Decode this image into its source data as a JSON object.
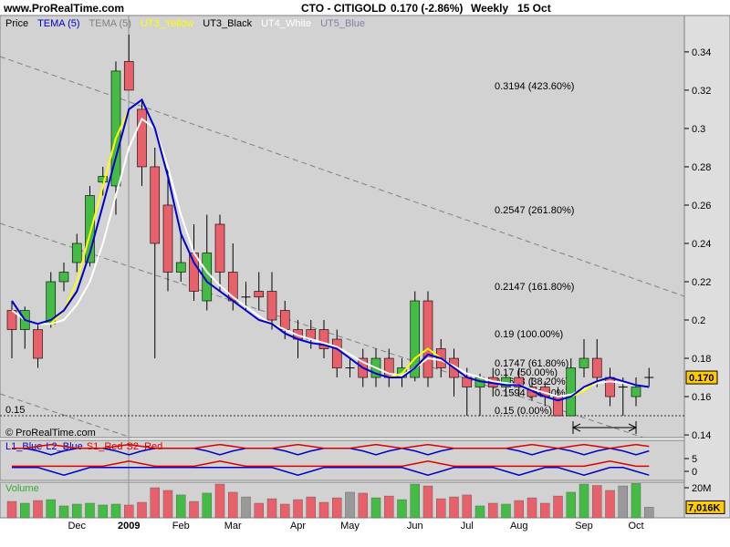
{
  "header": {
    "site": "www.ProRealTime.com",
    "symbol": "CTO - CITIGOLD",
    "quote": "0.170 (-2.86%)",
    "period": "Weekly",
    "date": "15 Oct"
  },
  "chart_data": [
    {
      "type": "candlestick",
      "title": "Price",
      "legend": [
        {
          "label": "TEMA (5)",
          "color": "#0000cc"
        },
        {
          "label": "TEMA (5)",
          "color": "#808080"
        },
        {
          "label": "UT3_Yellow",
          "color": "#ffff00"
        },
        {
          "label": "UT3_Black",
          "color": "#000000"
        },
        {
          "label": "UT4_White",
          "color": "#ffffff"
        },
        {
          "label": "UT5_Blue",
          "color": "#8080a0"
        }
      ],
      "categories": [
        null,
        null,
        null,
        null,
        null,
        "Dec",
        null,
        null,
        null,
        "2009",
        null,
        null,
        null,
        "Feb",
        null,
        null,
        null,
        "Mar",
        null,
        null,
        null,
        null,
        "Apr",
        null,
        null,
        null,
        "May",
        null,
        null,
        null,
        null,
        "Jun",
        null,
        null,
        null,
        "Jul",
        null,
        null,
        null,
        "Aug",
        null,
        null,
        null,
        null,
        "Sep",
        null,
        null,
        null,
        "Oct",
        null
      ],
      "open": [
        0.205,
        0.195,
        0.195,
        0.198,
        0.22,
        0.23,
        0.23,
        0.272,
        0.27,
        0.335,
        0.31,
        0.28,
        0.26,
        0.225,
        0.235,
        0.21,
        0.25,
        0.225,
        0.212,
        0.215,
        0.215,
        0.205,
        0.195,
        0.195,
        0.195,
        0.19,
        0.175,
        0.18,
        0.17,
        0.18,
        0.17,
        0.17,
        0.21,
        0.185,
        0.18,
        0.17,
        0.165,
        0.17,
        0.165,
        0.17,
        0.165,
        0.165,
        0.16,
        0.15,
        0.175,
        0.18,
        0.17,
        0.165,
        0.16,
        0.17
      ],
      "high": [
        0.21,
        0.207,
        0.198,
        0.225,
        0.23,
        0.245,
        0.27,
        0.28,
        0.335,
        0.349,
        0.315,
        0.29,
        0.28,
        0.245,
        0.25,
        0.255,
        0.255,
        0.24,
        0.22,
        0.225,
        0.225,
        0.21,
        0.2,
        0.2,
        0.2,
        0.195,
        0.18,
        0.185,
        0.185,
        0.185,
        0.18,
        0.215,
        0.215,
        0.19,
        0.185,
        0.175,
        0.172,
        0.175,
        0.172,
        0.175,
        0.17,
        0.168,
        0.165,
        0.18,
        0.19,
        0.19,
        0.175,
        0.17,
        0.17,
        0.175
      ],
      "low": [
        0.18,
        0.185,
        0.175,
        0.196,
        0.215,
        0.225,
        0.228,
        0.265,
        0.255,
        0.32,
        0.27,
        0.18,
        0.215,
        0.22,
        0.21,
        0.205,
        0.215,
        0.205,
        0.205,
        0.205,
        0.195,
        0.19,
        0.18,
        0.185,
        0.18,
        0.17,
        0.17,
        0.165,
        0.165,
        0.165,
        0.165,
        0.168,
        0.165,
        0.17,
        0.16,
        0.15,
        0.15,
        0.16,
        0.16,
        0.16,
        0.158,
        0.155,
        0.15,
        0.15,
        0.17,
        0.165,
        0.155,
        0.15,
        0.155,
        0.165
      ],
      "close": [
        0.195,
        0.205,
        0.18,
        0.22,
        0.225,
        0.24,
        0.265,
        0.275,
        0.33,
        0.32,
        0.28,
        0.24,
        0.225,
        0.23,
        0.215,
        0.235,
        0.225,
        0.21,
        0.212,
        0.212,
        0.2,
        0.195,
        0.19,
        0.19,
        0.185,
        0.175,
        0.175,
        0.17,
        0.18,
        0.17,
        0.175,
        0.21,
        0.17,
        0.175,
        0.17,
        0.165,
        0.17,
        0.165,
        0.17,
        0.165,
        0.16,
        0.16,
        0.15,
        0.175,
        0.18,
        0.17,
        0.16,
        0.165,
        0.165,
        0.17
      ],
      "up_color": "#44bb44",
      "down_color": "#e8606a",
      "flat_color": "#000000",
      "indicators": [
        {
          "color": "#ffffff",
          "values": [
            0.205,
            0.2,
            0.198,
            0.198,
            0.2,
            0.208,
            0.22,
            0.24,
            0.265,
            0.29,
            0.305,
            0.3,
            0.28,
            0.255,
            0.235,
            0.225,
            0.218,
            0.212,
            0.207,
            0.202,
            0.198,
            0.195,
            0.192,
            0.19,
            0.188,
            0.186,
            0.182,
            0.178,
            0.175,
            0.172,
            0.171,
            0.175,
            0.18,
            0.179,
            0.176,
            0.172,
            0.17,
            0.168,
            0.167,
            0.166,
            0.164,
            0.162,
            0.16,
            0.161,
            0.164,
            0.167,
            0.168,
            0.167,
            0.166,
            0.165
          ]
        },
        {
          "color": "#ffff00",
          "values": [
            null,
            null,
            null,
            0.198,
            0.205,
            0.22,
            0.245,
            0.27,
            0.295,
            0.31,
            null,
            null,
            null,
            null,
            null,
            null,
            null,
            null,
            null,
            null,
            null,
            null,
            null,
            null,
            null,
            null,
            null,
            null,
            null,
            0.17,
            0.172,
            0.18,
            0.185,
            0.18,
            null,
            null,
            null,
            null,
            null,
            null,
            null,
            null,
            null,
            0.16,
            0.163,
            0.168,
            0.17,
            null,
            null,
            null
          ]
        },
        {
          "color": "#0000cc",
          "values": [
            0.21,
            0.2,
            0.198,
            0.2,
            0.205,
            0.215,
            0.235,
            0.26,
            0.285,
            0.31,
            0.315,
            0.3,
            0.275,
            0.245,
            0.23,
            0.22,
            0.215,
            0.21,
            0.205,
            0.2,
            0.198,
            0.193,
            0.19,
            0.188,
            0.187,
            0.185,
            0.18,
            0.175,
            0.172,
            0.17,
            0.17,
            0.175,
            0.182,
            0.18,
            0.175,
            0.17,
            0.168,
            0.167,
            0.166,
            0.166,
            0.163,
            0.16,
            0.158,
            0.16,
            0.165,
            0.168,
            0.17,
            0.168,
            0.166,
            0.165
          ]
        }
      ],
      "levels": [
        {
          "value": 0.3194,
          "label": "0.3194 (423.60%)"
        },
        {
          "value": 0.2547,
          "label": "0.2547 (261.80%)"
        },
        {
          "value": 0.2147,
          "label": "0.2147 (161.80%)"
        },
        {
          "value": 0.19,
          "label": "0.19 (100.00%)"
        },
        {
          "value": 0.1747,
          "label": "0.1747 (61.80%)"
        },
        {
          "value": 0.17,
          "label": "0.17 (50.00%)"
        },
        {
          "value": 0.1653,
          "label": "0.1653 (38.20%)"
        },
        {
          "value": 0.1594,
          "label": "0.1594 (23.60%)"
        },
        {
          "value": 0.15,
          "label": "0.15 (0.00%)"
        }
      ],
      "hline": {
        "value": 0.15,
        "label": "0.15"
      },
      "last_price": {
        "value": 0.17,
        "label": "0.170"
      },
      "copyright": "© ProRealTime.com",
      "ylim": [
        0.1386,
        0.359
      ],
      "yticks": [
        0.34,
        0.32,
        0.3,
        0.28,
        0.26,
        0.24,
        0.22,
        0.2,
        0.18,
        0.16,
        0.14
      ]
    },
    {
      "type": "line",
      "series": [
        {
          "name": "L1_Blue",
          "color": "#0000cc",
          "values": [
            9,
            9,
            8,
            6.5,
            8,
            9,
            9,
            9,
            8,
            6.5,
            8,
            9,
            9,
            9,
            9,
            8,
            6.5,
            8,
            9,
            9,
            9,
            8,
            6.5,
            8,
            9,
            9,
            9,
            8,
            6.5,
            8,
            9,
            8,
            6.5,
            8,
            9,
            9,
            9,
            9,
            9,
            8,
            6.5,
            8,
            9,
            8,
            6.5,
            8,
            9,
            8,
            6.5,
            8
          ]
        },
        {
          "name": "L2_Blue",
          "color": "#0000cc",
          "values": [
            1.5,
            1.5,
            1.5,
            0,
            -1.5,
            0,
            1.5,
            1.5,
            1.5,
            1.5,
            1.5,
            1.5,
            1.5,
            1.5,
            1.5,
            1.5,
            1.5,
            1.5,
            1.5,
            1.5,
            1.5,
            0,
            -1.5,
            0,
            1.5,
            1.5,
            1.5,
            1.5,
            1.5,
            1.5,
            1.5,
            0,
            -1.5,
            0,
            1.5,
            1.5,
            1.5,
            1.5,
            0,
            -1.5,
            0,
            1.5,
            1.5,
            0,
            -1.5,
            0,
            1.5,
            1.5,
            0,
            -1.5
          ]
        },
        {
          "name": "S1_Red",
          "color": "#dd0000",
          "values": [
            9,
            9,
            9.8,
            10.5,
            9.8,
            9,
            9,
            9,
            9.8,
            10.5,
            9.8,
            9,
            9,
            9,
            9,
            9.8,
            10.5,
            9.8,
            9,
            9,
            9,
            9.8,
            10.5,
            9.8,
            9,
            9,
            9,
            9.8,
            10.5,
            9.8,
            9,
            9.8,
            10.5,
            9.8,
            9,
            9,
            9,
            9,
            9,
            9.8,
            10.5,
            9.8,
            9,
            9.8,
            10.5,
            9.8,
            9,
            9.8,
            10.5,
            9.8
          ]
        },
        {
          "name": "S2_Red",
          "color": "#dd0000",
          "values": [
            2,
            2,
            2,
            2,
            2,
            2,
            2,
            2,
            3,
            4,
            3,
            2,
            2,
            2,
            2,
            3,
            4,
            3,
            2,
            2,
            2,
            2,
            2,
            2,
            2,
            2,
            2,
            2,
            2,
            2,
            2,
            3,
            4,
            3,
            2,
            2,
            2,
            2,
            2,
            2,
            2,
            2,
            2,
            2,
            2,
            3,
            4,
            3,
            2,
            2
          ]
        }
      ],
      "ylim": [
        -3.57,
        12.14
      ],
      "yticks": [
        0,
        5
      ]
    },
    {
      "type": "bar",
      "title": "Volume",
      "values": [
        10900000,
        9700000,
        11500000,
        12100000,
        7900000,
        9100000,
        9700000,
        8500000,
        9100000,
        8500000,
        10300000,
        20000000,
        18200000,
        15200000,
        10900000,
        16400000,
        22400000,
        17000000,
        13900000,
        9700000,
        12700000,
        9100000,
        12100000,
        13900000,
        10300000,
        13300000,
        17000000,
        16400000,
        13300000,
        14500000,
        12100000,
        22400000,
        21200000,
        12700000,
        13900000,
        15200000,
        7900000,
        9700000,
        9100000,
        11500000,
        13300000,
        9700000,
        14500000,
        17000000,
        22400000,
        21500000,
        18200000,
        21200000,
        22800000,
        7016000
      ],
      "value_labels": [
        null,
        null,
        null,
        null,
        null,
        null,
        null,
        null,
        null,
        null,
        null,
        null,
        null,
        null,
        null,
        null,
        null,
        null,
        null,
        null,
        null,
        null,
        null,
        null,
        null,
        null,
        null,
        null,
        null,
        null,
        null,
        null,
        null,
        null,
        null,
        null,
        null,
        null,
        null,
        null,
        null,
        null,
        null,
        null,
        null,
        null,
        null,
        null,
        null,
        "7,016K"
      ],
      "ylim": [
        0,
        23640000
      ],
      "yticks": [
        {
          "value": 20000000,
          "label": "20M"
        }
      ]
    }
  ]
}
